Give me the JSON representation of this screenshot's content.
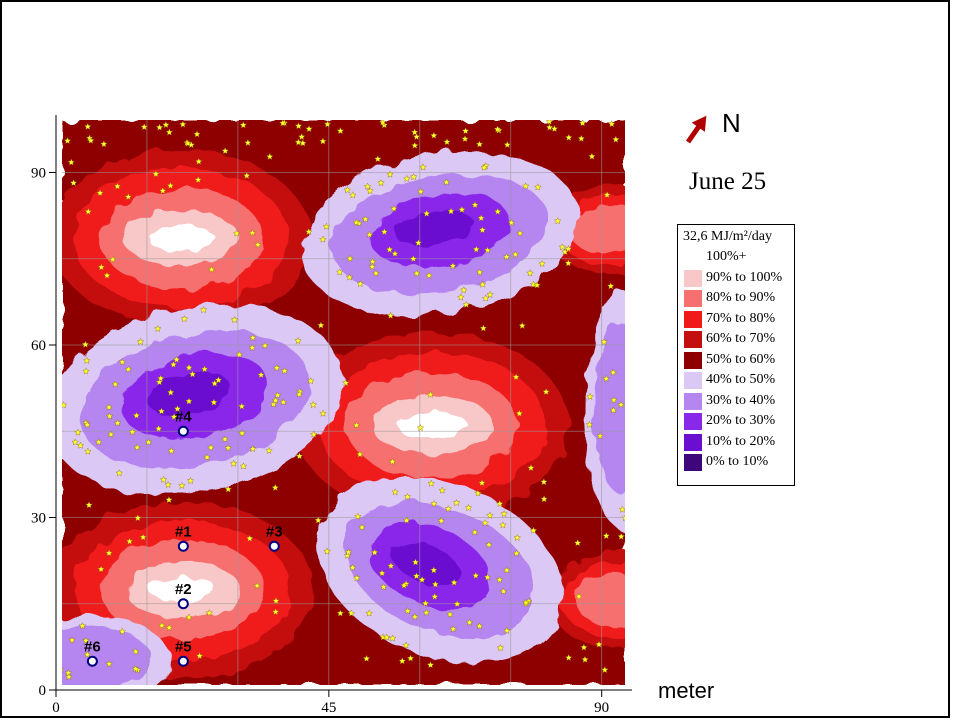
{
  "axes": {
    "x_ticks": [
      "0",
      "45",
      "90"
    ],
    "y_ticks": [
      "0",
      "30",
      "60",
      "90"
    ],
    "unit": "meter",
    "x_range": [
      0,
      95
    ],
    "y_range": [
      0,
      100
    ]
  },
  "north_label": "N",
  "date": "June 25",
  "legend": {
    "title": "32,6 MJ/m²/day",
    "entries": [
      {
        "label": "100%+",
        "color": "#ffffff"
      },
      {
        "label": "90% to 100%",
        "color": "#f8c7c7"
      },
      {
        "label": "80% to 90%",
        "color": "#f77070"
      },
      {
        "label": "70% to 80%",
        "color": "#f01a1a"
      },
      {
        "label": "60% to 70%",
        "color": "#c40f0f"
      },
      {
        "label": "50% to 60%",
        "color": "#8e0000"
      },
      {
        "label": "40% to 50%",
        "color": "#dcc8f4"
      },
      {
        "label": "30% to 40%",
        "color": "#b585f0"
      },
      {
        "label": "20% to 30%",
        "color": "#8a28ea"
      },
      {
        "label": "10% to 20%",
        "color": "#6a0fd0"
      },
      {
        "label": "0% to 10%",
        "color": "#3d067a"
      }
    ]
  },
  "markers": [
    {
      "label": "#1",
      "x": 21,
      "y": 25
    },
    {
      "label": "#2",
      "x": 21,
      "y": 15
    },
    {
      "label": "#3",
      "x": 36,
      "y": 25
    },
    {
      "label": "#4",
      "x": 21,
      "y": 45
    },
    {
      "label": "#5",
      "x": 21,
      "y": 5
    },
    {
      "label": "#6",
      "x": 6,
      "y": 5
    }
  ],
  "colors": {
    "tree_star": "#ffff33",
    "marker_fill": "#ffffff",
    "marker_stroke": "#000080",
    "north_arrow": "#b00000"
  }
}
